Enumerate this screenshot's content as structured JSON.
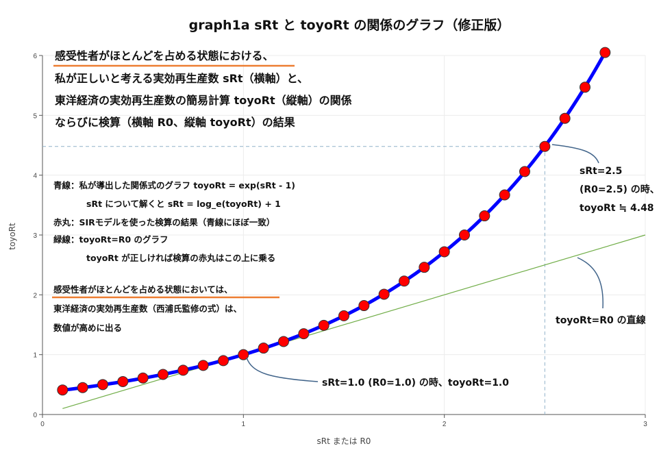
{
  "chart_data": {
    "type": "line",
    "title": "graph1a sRt と toyoRt の関係のグラフ（修正版）",
    "xlabel": "sRt または R0",
    "ylabel": "toyoRt",
    "xlim": [
      0,
      3
    ],
    "ylim": [
      0,
      6
    ],
    "xticks": [
      "0",
      "1",
      "2",
      "3"
    ],
    "yticks": [
      "0",
      "1",
      "2",
      "3",
      "4",
      "5",
      "6"
    ],
    "grid": true,
    "series": [
      {
        "kind": "curve",
        "formula": "exp(x-1)",
        "x_range": [
          0.1,
          2.8
        ],
        "color": "#0000ff"
      },
      {
        "kind": "line",
        "formula": "x",
        "x_range": [
          0.1,
          3.0
        ],
        "color": "#70ad47"
      },
      {
        "kind": "points",
        "color": "#ff0000",
        "x": [
          0.1,
          0.2,
          0.3,
          0.4,
          0.5,
          0.6,
          0.7,
          0.8,
          0.9,
          1.0,
          1.1,
          1.2,
          1.3,
          1.4,
          1.5,
          1.6,
          1.7,
          1.8,
          1.9,
          2.0,
          2.1,
          2.2,
          2.3,
          2.4,
          2.5,
          2.6,
          2.7,
          2.8
        ],
        "y": [
          0.41,
          0.45,
          0.5,
          0.55,
          0.61,
          0.67,
          0.74,
          0.82,
          0.9,
          1.0,
          1.11,
          1.22,
          1.35,
          1.49,
          1.65,
          1.82,
          2.01,
          2.23,
          2.46,
          2.72,
          3.0,
          3.32,
          3.67,
          4.06,
          4.48,
          4.95,
          5.47,
          6.05
        ]
      }
    ],
    "reference_lines": [
      {
        "orientation": "horizontal",
        "value": 4.48,
        "x_to": 2.5
      },
      {
        "orientation": "vertical",
        "value": 2.5,
        "y_to": 4.48
      }
    ],
    "annotations": {
      "block1": {
        "lines": [
          "感受性者がほとんどを占める状態における、",
          "私が正しいと考える実効再生産数 sRt（横軸）と、",
          "東洋経済の実効再生産数の簡易計算 toyoRt（縦軸）の関係",
          "ならびに検算（横軸 R0、縦軸 toyoRt）の結果"
        ]
      },
      "block2": {
        "lines": [
          "青線：私が導出した関係式のグラフ toyoRt = exp(sRt - 1)",
          "sRt について解くと sRt = log_e(toyoRt) + 1",
          "赤丸：SIRモデルを使った検算の結果（青線にほぼ一致）",
          "緑線：toyoRt=R0 のグラフ",
          "toyoRt が正しければ検算の赤丸はこの上に乗る"
        ]
      },
      "block3": {
        "lines": [
          "感受性者がほとんどを占める状態においては、",
          "東洋経済の実効再生産数（西浦氏監修の式）は、",
          "数値が高めに出る"
        ]
      },
      "callout_point": {
        "lines": [
          "sRt=2.5",
          "(R0=2.5) の時、",
          "toyoRt ≒ 4.48"
        ]
      },
      "callout_green": {
        "text": "toyoRt=R0 の直線"
      },
      "callout_one": {
        "text": "sRt=1.0 (R0=1.0) の時、toyoRt=1.0"
      }
    }
  }
}
